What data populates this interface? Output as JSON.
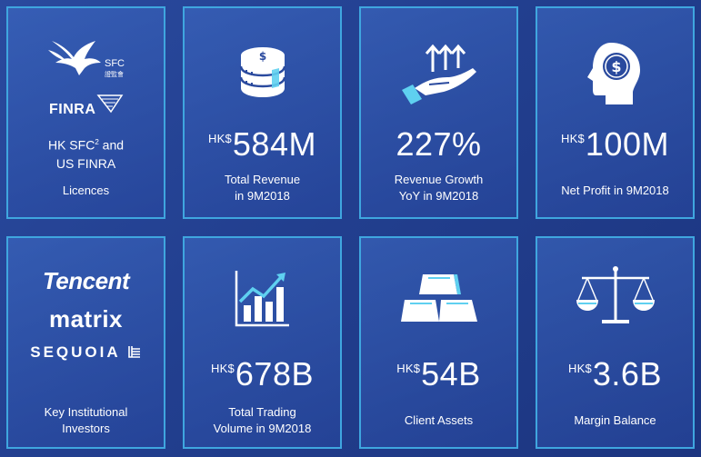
{
  "tiles": {
    "licences": {
      "sfc_en": "SFC",
      "sfc_zh": "證監會",
      "finra": "FINRA",
      "line1": "HK SFC",
      "sup": "2",
      "line1_tail": " and",
      "line2": "US FINRA",
      "caption": "Licences"
    },
    "revenue": {
      "currency": "HK$",
      "value": "584M",
      "caption1": "Total Revenue",
      "caption2": "in 9M2018"
    },
    "growth": {
      "value": "227%",
      "caption1": "Revenue Growth",
      "caption2": "YoY in 9M2018"
    },
    "profit": {
      "currency": "HK$",
      "value": "100M",
      "caption1": "Net Profit in 9M2018"
    },
    "investors": {
      "logo1": "Tencent",
      "logo2": "matrix",
      "logo3": "SEQUOIA",
      "caption1": "Key Institutional",
      "caption2": "Investors"
    },
    "volume": {
      "currency": "HK$",
      "value": "678B",
      "caption1": "Total Trading",
      "caption2": "Volume in 9M2018"
    },
    "assets": {
      "currency": "HK$",
      "value": "54B",
      "caption1": "Client Assets"
    },
    "margin": {
      "currency": "HK$",
      "value": "3.6B",
      "caption1": "Margin Balance"
    }
  },
  "colors": {
    "background": "#223f8f",
    "tile_border": "#3fa6df",
    "accent_cyan": "#5fd0f0",
    "text": "#ffffff"
  }
}
